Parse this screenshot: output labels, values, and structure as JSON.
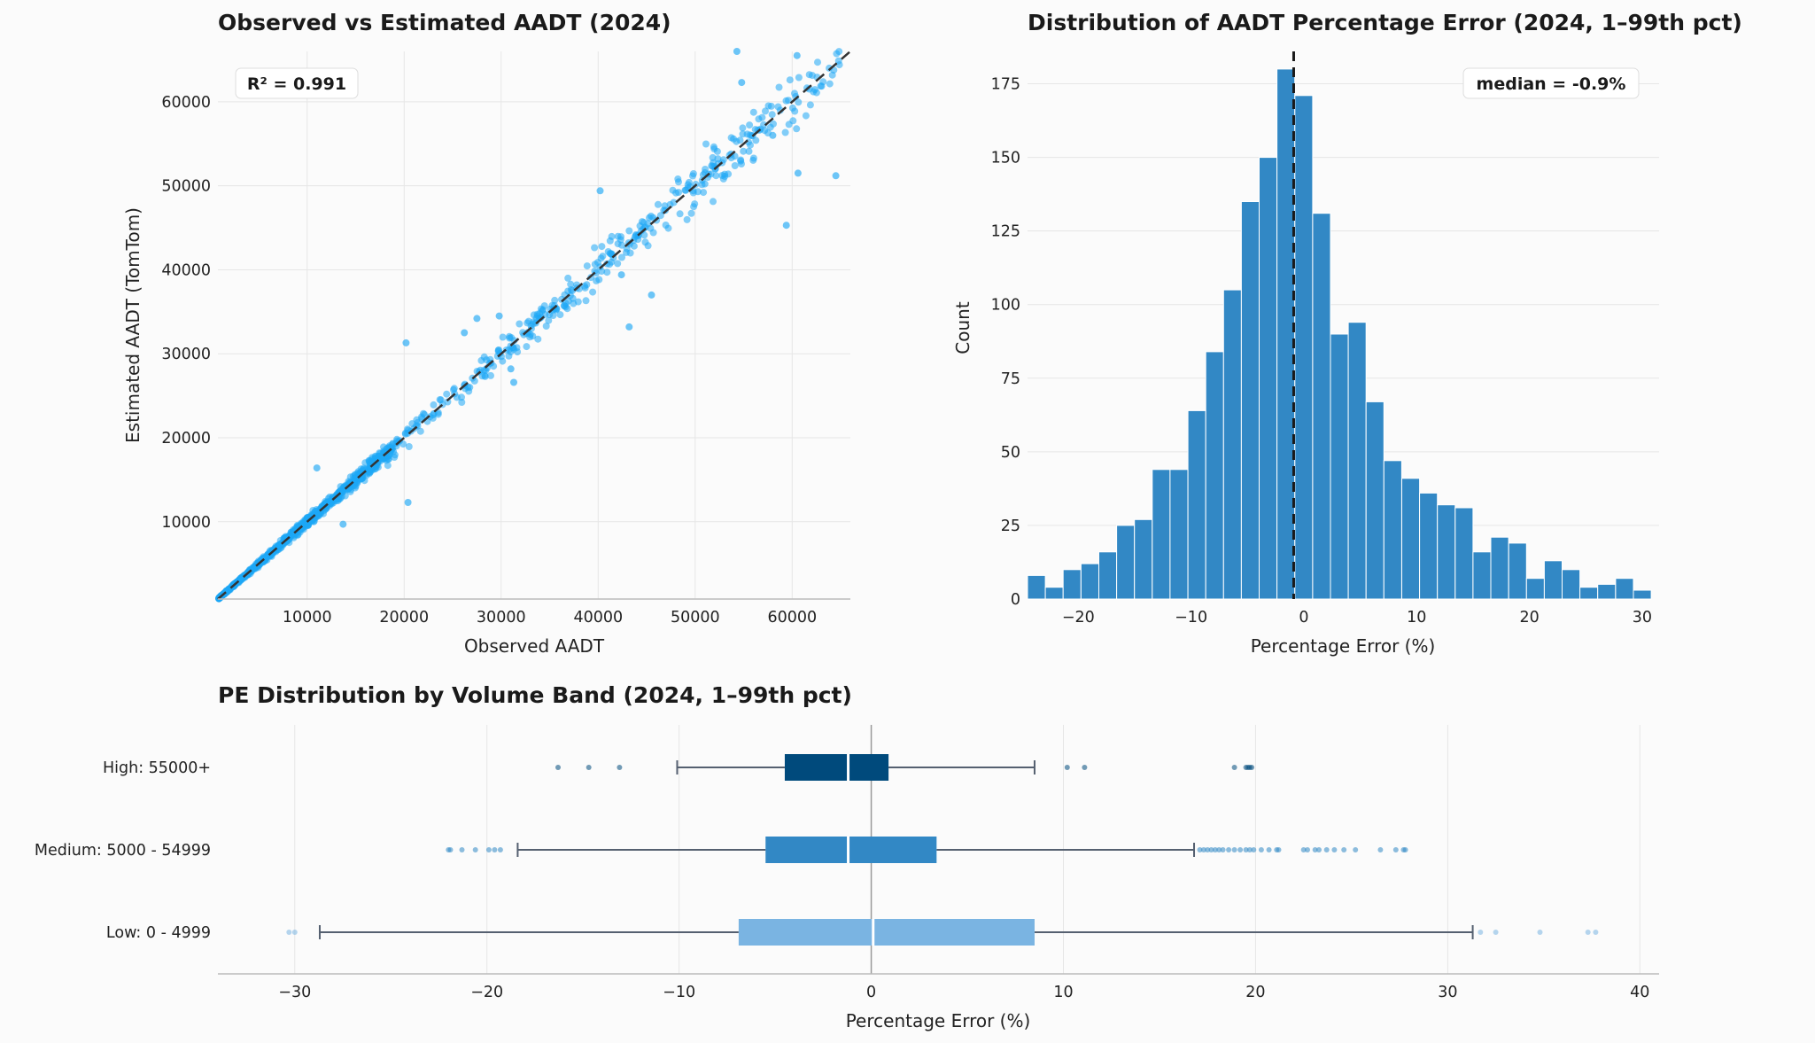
{
  "chart_data": [
    {
      "type": "scatter",
      "title": "Observed vs Estimated AADT (2024)",
      "xlabel": "Observed AADT",
      "ylabel": "Estimated AADT (TomTom)",
      "xlim": [
        800,
        66000
      ],
      "ylim": [
        800,
        66000
      ],
      "xticks": [
        10000,
        20000,
        30000,
        40000,
        50000,
        60000
      ],
      "yticks": [
        10000,
        20000,
        30000,
        40000,
        50000,
        60000
      ],
      "annotation": "R² = 0.991",
      "point_color": "#1ea7f5",
      "reference_line": "y = x (dashed)",
      "outliers": [
        [
          20200,
          31300
        ],
        [
          26200,
          32500
        ],
        [
          27500,
          34200
        ],
        [
          29800,
          34500
        ],
        [
          31000,
          28200
        ],
        [
          40200,
          49400
        ],
        [
          43200,
          33200
        ],
        [
          45500,
          37000
        ],
        [
          54800,
          62300
        ],
        [
          59400,
          45300
        ],
        [
          60600,
          51500
        ],
        [
          64500,
          51200
        ],
        [
          54300,
          66000
        ],
        [
          60500,
          65500
        ],
        [
          20400,
          12300
        ],
        [
          11000,
          16400
        ],
        [
          42400,
          39400
        ],
        [
          31300,
          26600
        ],
        [
          13700,
          9700
        ],
        [
          58000,
          56000
        ]
      ]
    },
    {
      "type": "bar",
      "title": "Distribution of AADT Percentage Error (2024, 1–99th pct)",
      "xlabel": "Percentage Error (%)",
      "ylabel": "Count",
      "xlim": [
        -24.5,
        31.5
      ],
      "ylim": [
        0,
        186
      ],
      "xticks": [
        -20,
        -10,
        0,
        10,
        20,
        30
      ],
      "yticks": [
        0,
        25,
        50,
        75,
        100,
        125,
        150,
        175
      ],
      "bin_start": -24.5,
      "bin_width": 1.58,
      "values": [
        8,
        4,
        10,
        12,
        16,
        25,
        27,
        44,
        44,
        64,
        84,
        105,
        135,
        150,
        180,
        171,
        131,
        90,
        94,
        67,
        47,
        41,
        36,
        32,
        31,
        16,
        21,
        19,
        7,
        13,
        10,
        4,
        5,
        7,
        3
      ],
      "median": -0.9,
      "annotation": "median = -0.9%",
      "bar_color": "#3288c5"
    },
    {
      "type": "box",
      "title": "PE Distribution by Volume Band (2024, 1–99th pct)",
      "xlabel": "Percentage Error (%)",
      "xlim": [
        -34,
        41
      ],
      "xticks": [
        -30,
        -20,
        -10,
        0,
        10,
        20,
        30,
        40
      ],
      "series": [
        {
          "name": "High: 55000+",
          "whisker_low": -10.1,
          "q1": -4.5,
          "median": -1.2,
          "q3": 0.9,
          "whisker_high": 8.5,
          "color": "#004a7c",
          "fliers": [
            -16.3,
            -14.7,
            -13.1,
            10.2,
            11.1,
            18.9,
            19.5,
            19.6,
            19.7,
            19.8
          ]
        },
        {
          "name": "Medium: 5000 - 54999",
          "whisker_low": -18.4,
          "q1": -5.5,
          "median": -1.2,
          "q3": 3.4,
          "whisker_high": 16.8,
          "color": "#3288c5",
          "fliers": [
            -22.0,
            -21.9,
            -21.3,
            -20.6,
            -19.9,
            -19.6,
            -19.3,
            17.1,
            17.3,
            17.5,
            17.7,
            17.9,
            18.1,
            18.3,
            18.6,
            18.9,
            19.2,
            19.5,
            19.7,
            19.9,
            20.3,
            20.7,
            21.1,
            21.2,
            22.5,
            22.7,
            23.1,
            23.3,
            23.7,
            24.1,
            24.6,
            25.2,
            26.5,
            27.3,
            27.7,
            27.8
          ]
        },
        {
          "name": "Low: 0 - 4999",
          "whisker_low": -28.7,
          "q1": -6.9,
          "median": 0.1,
          "q3": 8.5,
          "whisker_high": 31.3,
          "color": "#7ab4e2",
          "fliers": [
            -30.3,
            -30.0,
            31.7,
            32.5,
            34.8,
            37.3,
            37.7
          ]
        }
      ]
    }
  ]
}
